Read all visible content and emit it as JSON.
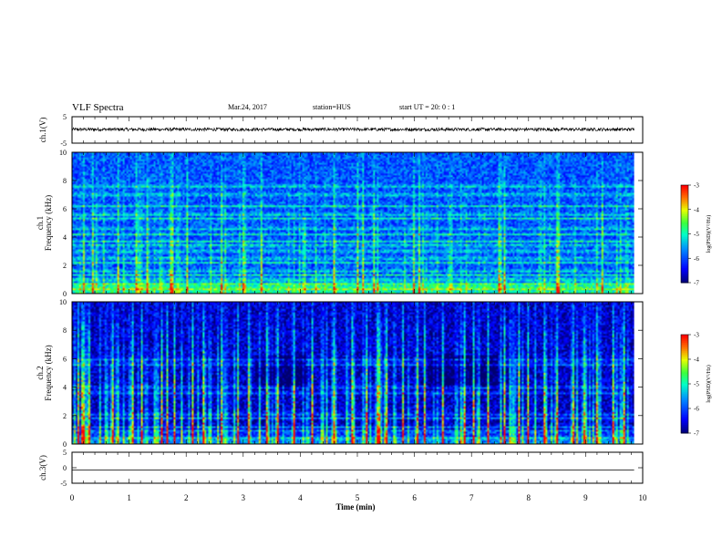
{
  "header": {
    "title": "VLF Spectra",
    "date": "Mar.24, 2017",
    "station": "station=HUS",
    "start": "start UT =  20: 0 : 1"
  },
  "chart_data": [
    {
      "type": "line",
      "id": "ch1-waveform",
      "ylabel": "ch.1(V)",
      "ylim": [
        -5,
        5
      ],
      "yticks": [
        5,
        -5
      ],
      "xlim": [
        0,
        10
      ],
      "series": [
        {
          "mean": 0.2,
          "amplitude": 0.6
        }
      ]
    },
    {
      "type": "heatmap",
      "id": "ch1-spectrogram",
      "ylabel_lines": [
        "ch.1",
        "Frequency (kHz)"
      ],
      "ylim": [
        0,
        10
      ],
      "yticks": [
        0,
        2,
        4,
        6,
        8,
        10
      ],
      "xlim": [
        0,
        9.85
      ],
      "colorbar": {
        "label": "log(PSD)(V²/Hz)",
        "range": [
          -7,
          -3
        ],
        "ticks": [
          -3,
          -4,
          -5,
          -6,
          -7
        ]
      },
      "background_level": -5.9,
      "bands_khz": [
        0.3,
        0.5,
        0.7,
        1.0,
        1.3,
        1.6,
        2.2,
        2.5,
        3.0,
        3.4,
        3.7,
        4.2,
        4.6,
        5.3,
        5.6,
        6.2,
        7.0,
        7.6
      ],
      "spikes_min": [
        0.2,
        0.35,
        0.8,
        1.1,
        1.3,
        1.72,
        1.75,
        2.0,
        2.6,
        3.0,
        3.3,
        4.6,
        5.0,
        5.1,
        5.3,
        6.0,
        6.1,
        7.5,
        7.6,
        8.5,
        8.55,
        9.3
      ]
    },
    {
      "type": "heatmap",
      "id": "ch2-spectrogram",
      "ylabel_lines": [
        "ch.2",
        "Frequency (kHz)"
      ],
      "ylim": [
        0,
        10
      ],
      "yticks": [
        0,
        2,
        4,
        6,
        8,
        10
      ],
      "xlim": [
        0,
        9.85
      ],
      "colorbar": {
        "label": "log(PSD)(V²/Hz)",
        "range": [
          -7,
          -3
        ],
        "ticks": [
          -3,
          -4,
          -5,
          -6,
          -7
        ]
      },
      "background_level": -6.6,
      "bands_khz": [
        0.4,
        0.9,
        1.2,
        1.8,
        2.1,
        3.6,
        4.0,
        5.6,
        5.9
      ],
      "spikes_min": [
        0.1,
        0.15,
        0.2,
        0.3,
        0.7,
        1.05,
        1.2,
        1.55,
        1.65,
        1.8,
        2.1,
        2.3,
        2.6,
        2.9,
        3.1,
        3.4,
        3.6,
        3.9,
        4.2,
        4.6,
        4.9,
        5.15,
        5.35,
        5.4,
        5.5,
        5.8,
        6.05,
        6.2,
        6.5,
        6.9,
        7.05,
        7.3,
        7.6,
        7.85,
        8.0,
        8.3,
        8.5,
        8.8,
        9.0,
        9.2,
        9.5,
        9.7
      ]
    },
    {
      "type": "line",
      "id": "ch3-waveform",
      "ylabel": "ch.3(V)",
      "ylim": [
        -5,
        5
      ],
      "yticks": [
        5,
        0,
        -5
      ],
      "xlim": [
        0,
        10
      ],
      "xlabel": "Time (min)",
      "xticks": [
        0,
        1,
        2,
        3,
        4,
        5,
        6,
        7,
        8,
        9,
        10
      ],
      "series": [
        {
          "mean": -0.7,
          "amplitude": 0
        }
      ]
    }
  ]
}
